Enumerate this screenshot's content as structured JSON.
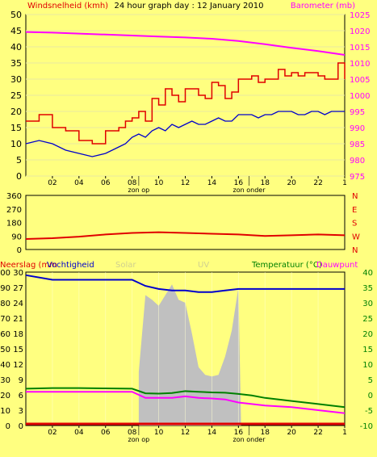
{
  "title": "24 hour graph day : 12 January 2010",
  "x_ticks": [
    "02",
    "04",
    "06",
    "08",
    "10",
    "12",
    "14",
    "16",
    "18",
    "20",
    "22",
    "1"
  ],
  "sun_labels": {
    "rise": "zon op",
    "set": "zon onder"
  },
  "colors": {
    "background": "#ffff80",
    "plot_bg": "#ffff80",
    "wind": "#e00000",
    "gust": "#e00000",
    "wind_avg": "#0000cc",
    "baro": "#ff00ff",
    "direction": "#e00000",
    "humidity": "#0000cc",
    "temperature": "#008000",
    "dewpoint": "#ff00ff",
    "uv": "#c0c0c0",
    "rain": "#e00000",
    "solar_label": "#d0d090"
  },
  "chart_data": [
    {
      "type": "line",
      "panel": "wind-baro",
      "left_axis_label": "Windsnelheid (kmh)",
      "right_axis_label": "Barometer (mb)",
      "y_ticks_left": [
        "0",
        "5",
        "10",
        "15",
        "20",
        "25",
        "30",
        "35",
        "40",
        "45",
        "50"
      ],
      "y_ticks_right": [
        "975",
        "980",
        "985",
        "990",
        "995",
        "1000",
        "1005",
        "1010",
        "1015",
        "1020",
        "1025"
      ],
      "ylim_left": [
        0,
        50
      ],
      "ylim_right": [
        975,
        1025
      ],
      "x_hours": [
        0,
        24
      ],
      "series": [
        {
          "key": "gust",
          "x": [
            0,
            1,
            2,
            3,
            4,
            5,
            6,
            7,
            7.5,
            8,
            8.5,
            9,
            9.5,
            10,
            10.5,
            11,
            11.5,
            12,
            12.5,
            13,
            13.5,
            14,
            14.5,
            15,
            15.5,
            16,
            16.5,
            17,
            17.5,
            18,
            18.5,
            19,
            19.5,
            20,
            20.5,
            21,
            21.5,
            22,
            22.5,
            23,
            23.5,
            24
          ],
          "values": [
            17,
            19,
            15,
            14,
            11,
            10,
            14,
            15,
            17,
            18,
            20,
            17,
            24,
            22,
            27,
            25,
            23,
            27,
            27,
            25,
            24,
            29,
            28,
            24,
            26,
            30,
            30,
            31,
            29,
            30,
            30,
            33,
            31,
            32,
            31,
            32,
            32,
            31,
            30,
            30,
            35,
            30
          ]
        },
        {
          "key": "wind_avg",
          "x": [
            0,
            1,
            2,
            3,
            4,
            5,
            6,
            7,
            7.5,
            8,
            8.5,
            9,
            9.5,
            10,
            10.5,
            11,
            11.5,
            12,
            12.5,
            13,
            13.5,
            14,
            14.5,
            15,
            15.5,
            16,
            16.5,
            17,
            17.5,
            18,
            18.5,
            19,
            19.5,
            20,
            20.5,
            21,
            21.5,
            22,
            22.5,
            23,
            23.5,
            24
          ],
          "values": [
            10,
            11,
            10,
            8,
            7,
            6,
            7,
            9,
            10,
            12,
            13,
            12,
            14,
            15,
            14,
            16,
            15,
            16,
            17,
            16,
            16,
            17,
            18,
            17,
            17,
            19,
            19,
            19,
            18,
            19,
            19,
            20,
            20,
            20,
            19,
            19,
            20,
            20,
            19,
            20,
            20,
            20
          ]
        },
        {
          "key": "baro",
          "x": [
            0,
            2,
            4,
            6,
            8,
            10,
            12,
            14,
            16,
            18,
            20,
            22,
            24
          ],
          "values": [
            1019.6,
            1019.4,
            1019.1,
            1018.8,
            1018.5,
            1018.2,
            1017.9,
            1017.5,
            1016.8,
            1015.8,
            1014.7,
            1013.7,
            1012.5
          ]
        }
      ]
    },
    {
      "type": "line",
      "panel": "direction",
      "y_ticks_left": [
        "0",
        "90",
        "180",
        "270",
        "360"
      ],
      "y_ticks_right": [
        "N",
        "E",
        "S",
        "W",
        "N"
      ],
      "ylim": [
        0,
        360
      ],
      "series": [
        {
          "key": "direction",
          "x": [
            0,
            2,
            4,
            6,
            8,
            10,
            12,
            14,
            16,
            18,
            20,
            22,
            24
          ],
          "values": [
            70,
            75,
            85,
            100,
            110,
            115,
            110,
            105,
            100,
            90,
            95,
            100,
            95
          ]
        }
      ]
    },
    {
      "type": "line",
      "panel": "rain-hum-temp",
      "labels": {
        "rain": "Neerslag (mm",
        "humidity": "Vochtigheid",
        "solar": "Solar",
        "uv": "UV",
        "temperature": "Temperatuur (°C)",
        "dewpoint": "Dauwpunt"
      },
      "y_ticks_left_outer": [
        "0",
        "10",
        "20",
        "30",
        "40",
        "50",
        "60",
        "70",
        "80",
        "90",
        "100"
      ],
      "y_ticks_left_inner": [
        "0",
        "3",
        "6",
        "9",
        "12",
        "15",
        "18",
        "21",
        "24",
        "27",
        "30"
      ],
      "y_ticks_right": [
        "-10",
        "-5",
        "0",
        "5",
        "10",
        "15",
        "20",
        "25",
        "30",
        "35",
        "40"
      ],
      "ylim_left": [
        0,
        100
      ],
      "ylim_right": [
        -10,
        40
      ],
      "series": [
        {
          "key": "humidity",
          "x": [
            0,
            2,
            4,
            6,
            8,
            9,
            10,
            11,
            12,
            13,
            14,
            15,
            16,
            17,
            18,
            20,
            22,
            24
          ],
          "values": [
            98,
            95,
            95,
            95,
            95,
            91,
            89,
            88,
            88,
            87,
            87,
            88,
            89,
            89,
            89,
            89,
            89,
            89
          ]
        },
        {
          "key": "temperature",
          "x": [
            0,
            2,
            4,
            6,
            8,
            9,
            10,
            11,
            12,
            13,
            14,
            15,
            16,
            17,
            18,
            20,
            22,
            24
          ],
          "values": [
            2,
            2.2,
            2.2,
            2.1,
            2.0,
            0.5,
            0.4,
            0.6,
            1.2,
            1.0,
            0.8,
            0.7,
            0.3,
            -0.2,
            -1,
            -2,
            -3,
            -4
          ]
        },
        {
          "key": "dewpoint",
          "x": [
            0,
            2,
            4,
            6,
            8,
            9,
            10,
            11,
            12,
            13,
            14,
            15,
            16,
            17,
            18,
            20,
            22,
            24
          ],
          "values": [
            1,
            1,
            1,
            1,
            1,
            -1,
            -1,
            -1,
            -0.5,
            -1,
            -1.2,
            -1.5,
            -2.5,
            -3,
            -3.5,
            -4,
            -5,
            -6
          ]
        },
        {
          "key": "uv",
          "x": [
            8.5,
            9,
            9.5,
            10,
            10.5,
            11,
            11.5,
            12,
            12.5,
            13,
            13.5,
            14,
            14.5,
            15,
            15.5,
            16,
            16.2
          ],
          "values": [
            35,
            85,
            82,
            78,
            85,
            92,
            82,
            80,
            60,
            38,
            33,
            32,
            33,
            45,
            62,
            90,
            0
          ]
        },
        {
          "key": "rain",
          "x": [
            0,
            24
          ],
          "values": [
            0,
            0
          ]
        }
      ]
    }
  ]
}
